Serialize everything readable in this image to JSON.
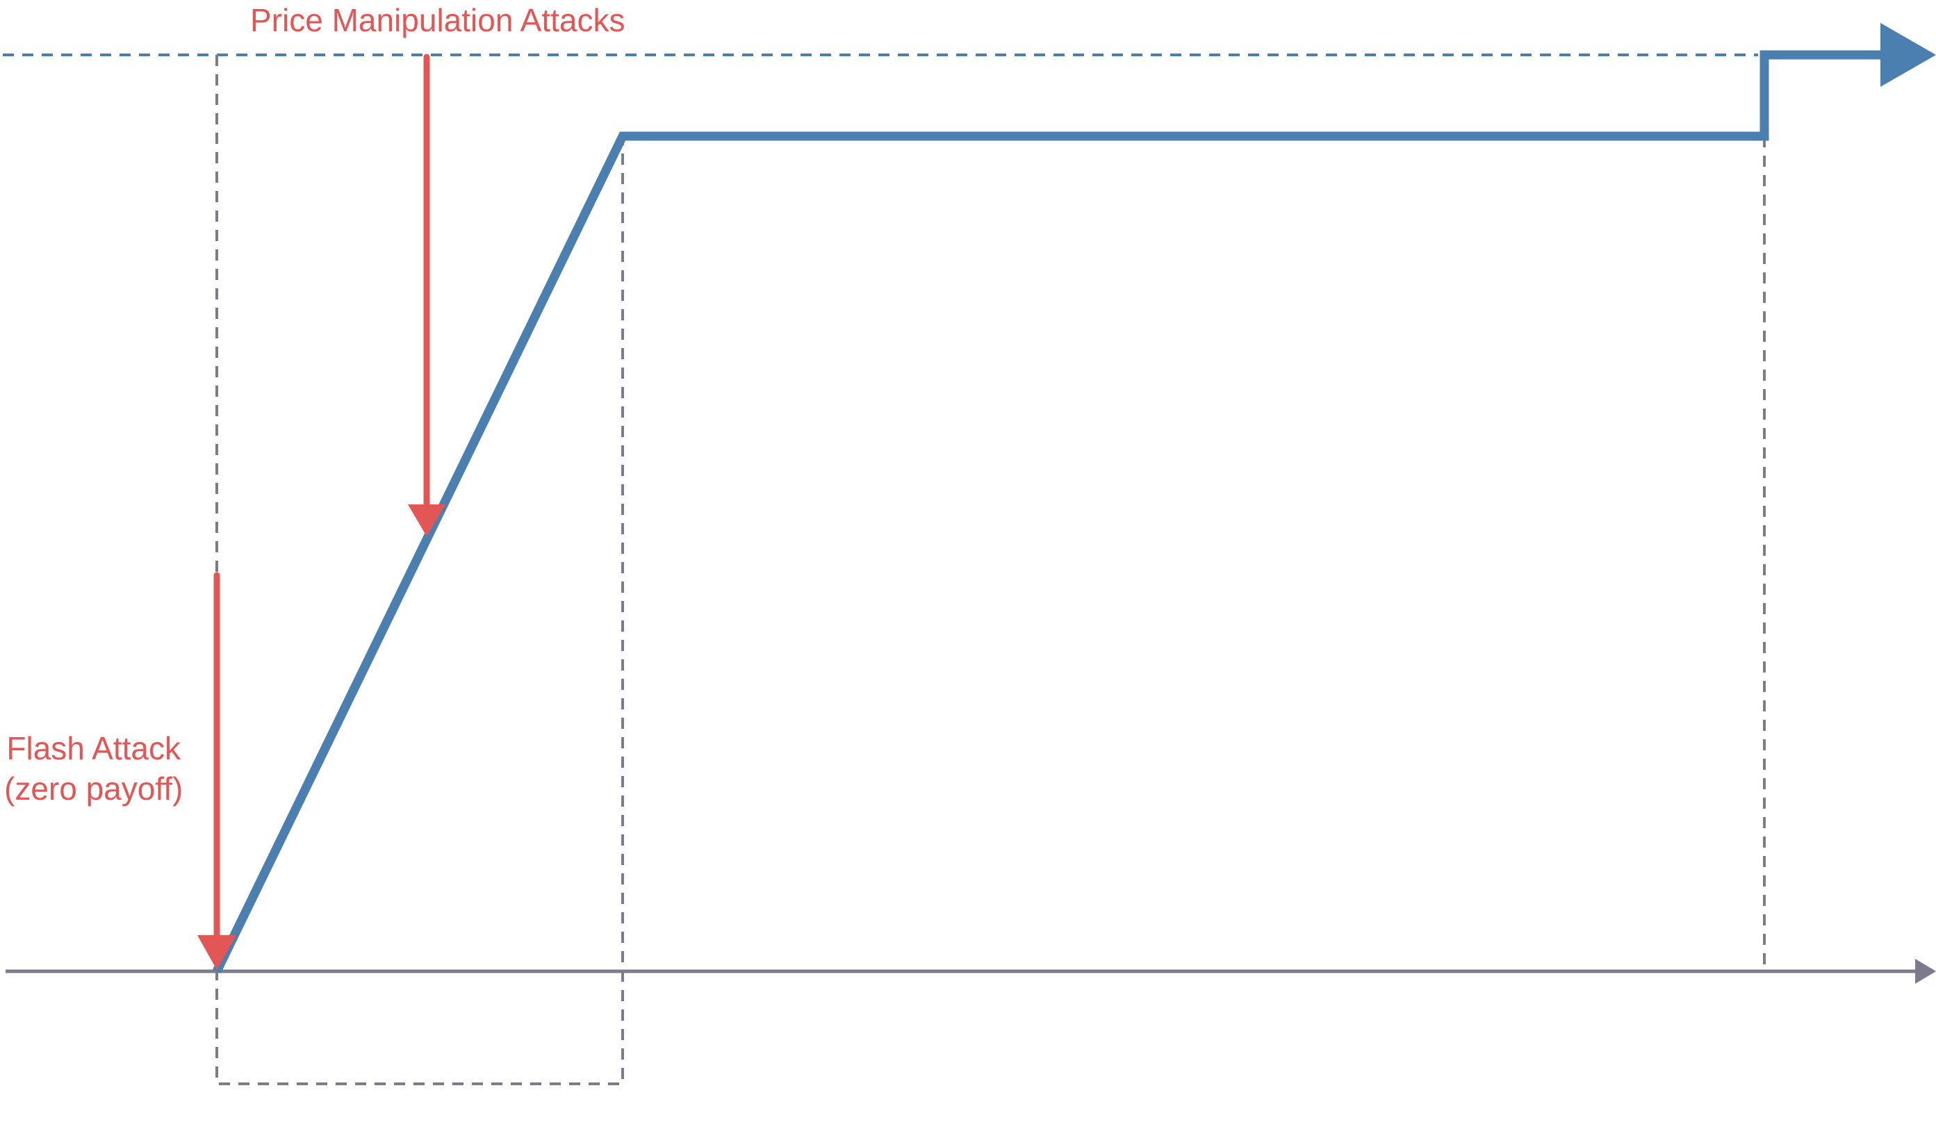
{
  "colors": {
    "curve": "#4a7fb0",
    "attack": "#e35656",
    "axis": "#7d7a8c",
    "guide": "#7d7a8c",
    "ceiling": "#4a7fb0",
    "background": "#ffffff"
  },
  "annotations": {
    "price_manipulation": "Price Manipulation Attacks",
    "flash_attack_line1": "Flash Attack",
    "flash_attack_line2": "(zero payoff)"
  },
  "icons": [
    "axis-arrowhead-icon",
    "curve-arrowhead-icon",
    "attack-arrowhead-icon"
  ]
}
